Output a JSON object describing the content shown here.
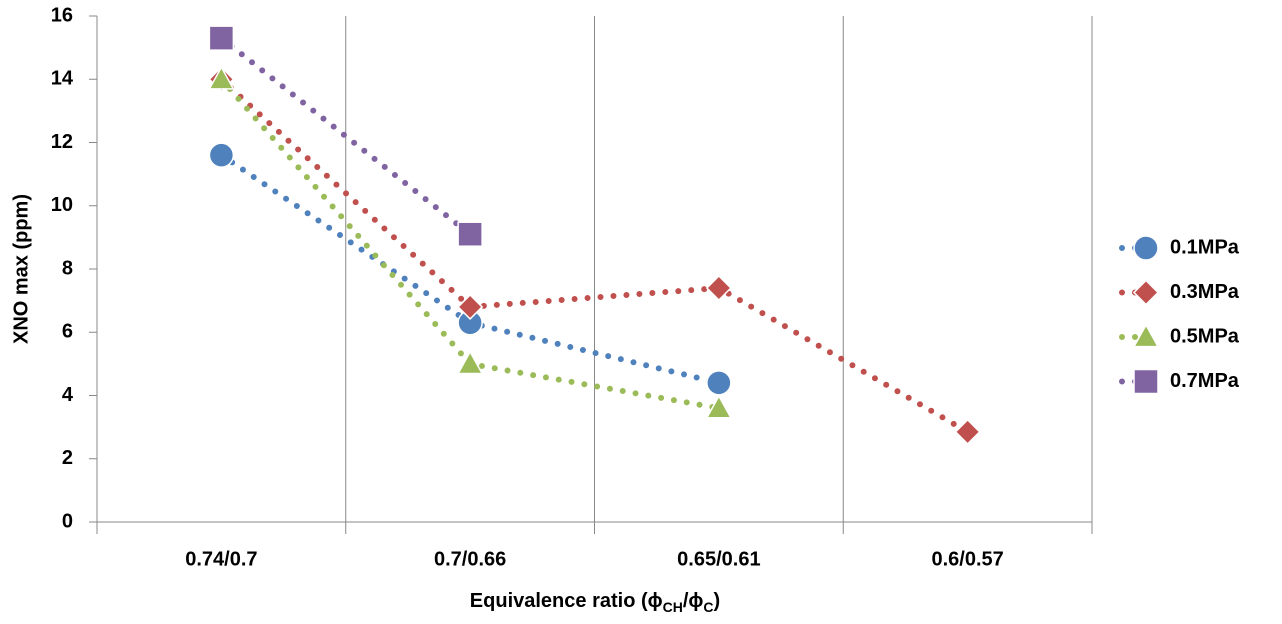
{
  "chart_data": {
    "type": "line",
    "y_label": "XNO max (ppm)",
    "x_label": [
      "Equivalence ratio (ϕ",
      "CH",
      "/ϕ",
      "C",
      ")"
    ],
    "categories": [
      "0.74/0.7",
      "0.7/0.66",
      "0.65/0.61",
      "0.6/0.57"
    ],
    "series": [
      {
        "name": "0.1MPa",
        "color": "#4f81bd",
        "marker": "circle",
        "values": [
          11.6,
          6.3,
          4.4,
          null
        ]
      },
      {
        "name": "0.3MPa",
        "color": "#c0504d",
        "marker": "diamond",
        "values": [
          14.0,
          6.8,
          7.4,
          2.85
        ]
      },
      {
        "name": "0.5MPa",
        "color": "#9bbb59",
        "marker": "triangle",
        "values": [
          14.0,
          5.0,
          3.6,
          null
        ]
      },
      {
        "name": "0.7MPa",
        "color": "#8064a2",
        "marker": "square",
        "values": [
          15.3,
          9.1,
          null,
          null
        ]
      }
    ],
    "ylim": [
      0,
      16
    ],
    "yticks": [
      0,
      2,
      4,
      6,
      8,
      10,
      12,
      14,
      16
    ],
    "xgrid": true,
    "line_style": "dotted",
    "legend": "right"
  }
}
